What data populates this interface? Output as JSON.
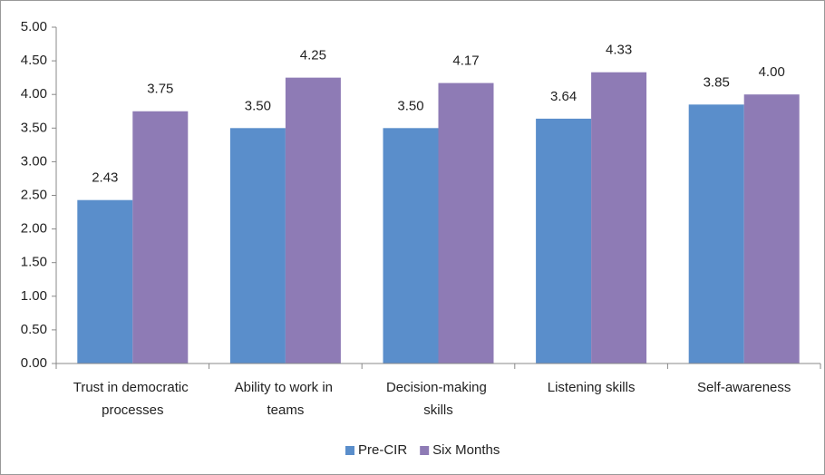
{
  "chart_data": {
    "type": "bar",
    "categories": [
      "Trust in democratic processes",
      "Ability to work in teams",
      "Decision-making skills",
      "Listening skills",
      "Self-awareness"
    ],
    "series": [
      {
        "name": "Pre-CIR",
        "color": "#5a8ecb",
        "values": [
          2.43,
          3.5,
          3.5,
          3.64,
          3.85
        ],
        "value_labels": [
          "2.43",
          "3.50",
          "3.50",
          "3.64",
          "3.85"
        ]
      },
      {
        "name": "Six Months",
        "color": "#8e7bb5",
        "values": [
          3.75,
          4.25,
          4.17,
          4.33,
          4.0
        ],
        "value_labels": [
          "3.75",
          "4.25",
          "4.17",
          "4.33",
          "4.00"
        ]
      }
    ],
    "ylim": [
      0,
      5
    ],
    "yticks": [
      {
        "value": 0,
        "label": "0.00"
      },
      {
        "value": 0.5,
        "label": "0.50"
      },
      {
        "value": 1,
        "label": "1.00"
      },
      {
        "value": 1.5,
        "label": "1.50"
      },
      {
        "value": 2,
        "label": "2.00"
      },
      {
        "value": 2.5,
        "label": "2.50"
      },
      {
        "value": 3,
        "label": "3.00"
      },
      {
        "value": 3.5,
        "label": "3.50"
      },
      {
        "value": 4,
        "label": "4.00"
      },
      {
        "value": 4.5,
        "label": "4.50"
      },
      {
        "value": 5,
        "label": "5.00"
      }
    ],
    "grid": false,
    "legend": "bottom"
  }
}
